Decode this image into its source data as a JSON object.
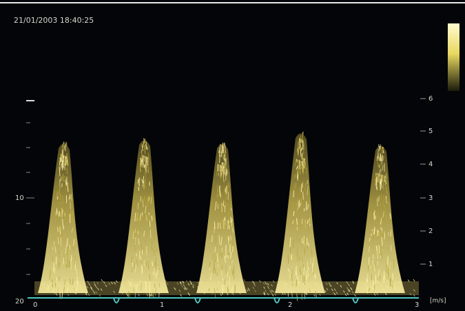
{
  "header": {
    "timestamp": "21/01/2003 18:40:25"
  },
  "left_axis": {
    "labels": [
      "10",
      "20"
    ]
  },
  "right_axis": {
    "labels": [
      "6",
      "5",
      "4",
      "3",
      "2",
      "1"
    ],
    "unit": "[m/s]"
  },
  "time_axis": {
    "labels": [
      "0",
      "1",
      "2",
      "3"
    ]
  }
}
